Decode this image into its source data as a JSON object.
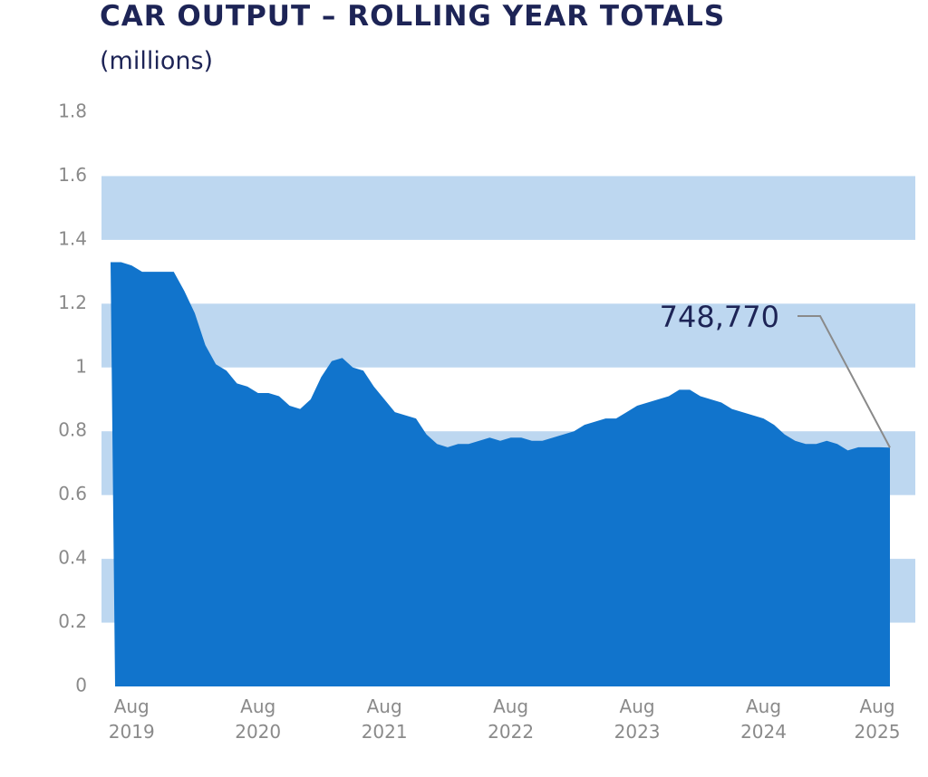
{
  "chart_data": {
    "type": "area",
    "title": "CAR OUTPUT – ROLLING YEAR TOTALS",
    "subtitle": "(millions)",
    "categories": [
      null,
      null,
      "Aug 2019",
      null,
      null,
      null,
      null,
      null,
      null,
      null,
      null,
      null,
      null,
      null,
      "Aug 2020",
      null,
      null,
      null,
      null,
      null,
      null,
      null,
      null,
      null,
      null,
      null,
      "Aug 2021",
      null,
      null,
      null,
      null,
      null,
      null,
      null,
      null,
      null,
      null,
      null,
      "Aug 2022",
      null,
      null,
      null,
      null,
      null,
      null,
      null,
      null,
      null,
      null,
      null,
      "Aug 2023",
      null,
      null,
      null,
      null,
      null,
      null,
      null,
      null,
      null,
      null,
      null,
      "Aug 2024",
      null,
      null,
      null,
      null,
      null,
      null,
      null,
      null,
      null,
      null,
      null,
      "Aug 2025"
    ],
    "values": [
      1.33,
      1.33,
      1.32,
      1.3,
      1.3,
      1.3,
      1.3,
      1.24,
      1.17,
      1.07,
      1.01,
      0.99,
      0.95,
      0.94,
      0.92,
      0.92,
      0.91,
      0.88,
      0.87,
      0.9,
      0.97,
      1.02,
      1.03,
      1.0,
      0.99,
      0.94,
      0.9,
      0.86,
      0.85,
      0.84,
      0.79,
      0.76,
      0.75,
      0.76,
      0.76,
      0.77,
      0.78,
      0.77,
      0.78,
      0.78,
      0.77,
      0.77,
      0.78,
      0.79,
      0.8,
      0.82,
      0.83,
      0.84,
      0.84,
      0.86,
      0.88,
      0.89,
      0.9,
      0.91,
      0.93,
      0.93,
      0.91,
      0.9,
      0.89,
      0.87,
      0.86,
      0.85,
      0.84,
      0.82,
      0.79,
      0.77,
      0.76,
      0.76,
      0.77,
      0.76,
      0.74,
      0.75,
      0.75,
      0.75,
      0.74877
    ],
    "value_labels": [
      null,
      null,
      null,
      null,
      null,
      null,
      null,
      null,
      null,
      null,
      null,
      null,
      null,
      null,
      null,
      null,
      null,
      null,
      null,
      null,
      null,
      null,
      null,
      null,
      null,
      null,
      null,
      null,
      null,
      null,
      null,
      null,
      null,
      null,
      null,
      null,
      null,
      null,
      null,
      null,
      null,
      null,
      null,
      null,
      null,
      null,
      null,
      null,
      null,
      null,
      null,
      null,
      null,
      null,
      null,
      null,
      null,
      null,
      null,
      null,
      null,
      null,
      null,
      null,
      null,
      null,
      null,
      null,
      null,
      null,
      null,
      null,
      null,
      null,
      "748,770"
    ],
    "color": "#1174cc",
    "band_color": "#bdd7f0",
    "ylim": [
      0,
      1.8
    ],
    "yticks": [
      0,
      0.2,
      0.4,
      0.6,
      0.8,
      1,
      1.2,
      1.4,
      1.6,
      1.8
    ],
    "grid": true
  }
}
